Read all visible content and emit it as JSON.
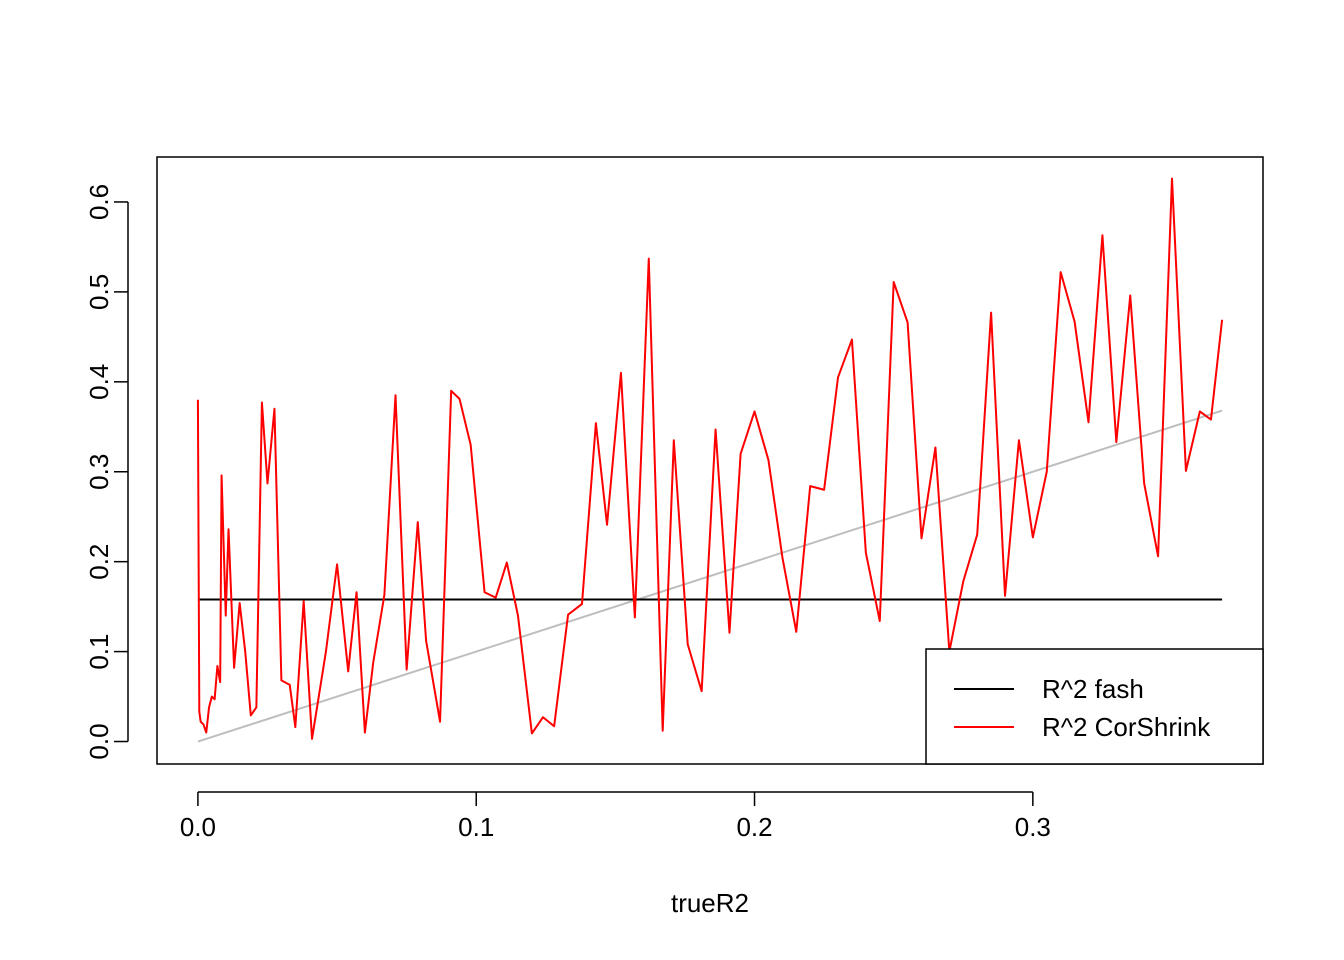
{
  "chart_data": {
    "type": "line",
    "title": "",
    "xlabel": "trueR2",
    "ylabel": "",
    "xlim": [
      -0.0147,
      0.3827
    ],
    "ylim": [
      -0.025,
      0.65
    ],
    "x_ticks": [
      {
        "value": 0.0,
        "label": "0.0"
      },
      {
        "value": 0.1,
        "label": "0.1"
      },
      {
        "value": 0.2,
        "label": "0.2"
      },
      {
        "value": 0.3,
        "label": "0.3"
      }
    ],
    "y_ticks": [
      {
        "value": 0.0,
        "label": "0.0"
      },
      {
        "value": 0.1,
        "label": "0.1"
      },
      {
        "value": 0.2,
        "label": "0.2"
      },
      {
        "value": 0.3,
        "label": "0.3"
      },
      {
        "value": 0.4,
        "label": "0.4"
      },
      {
        "value": 0.5,
        "label": "0.5"
      },
      {
        "value": 0.6,
        "label": "0.6"
      }
    ],
    "legend_position": "bottom-right",
    "series": [
      {
        "name": "R^2 fash",
        "color": "#000000",
        "points": [
          [
            0.0,
            0.158
          ],
          [
            0.368,
            0.158
          ]
        ]
      },
      {
        "name": "R^2 CorShrink",
        "color": "#ff0000",
        "points": [
          [
            0.0,
            0.38
          ],
          [
            0.0005,
            0.033
          ],
          [
            0.001,
            0.022
          ],
          [
            0.002,
            0.019
          ],
          [
            0.003,
            0.01
          ],
          [
            0.004,
            0.038
          ],
          [
            0.005,
            0.05
          ],
          [
            0.006,
            0.047
          ],
          [
            0.007,
            0.084
          ],
          [
            0.008,
            0.066
          ],
          [
            0.0085,
            0.296
          ],
          [
            0.01,
            0.14
          ],
          [
            0.011,
            0.236
          ],
          [
            0.013,
            0.082
          ],
          [
            0.015,
            0.154
          ],
          [
            0.017,
            0.1
          ],
          [
            0.019,
            0.029
          ],
          [
            0.021,
            0.038
          ],
          [
            0.023,
            0.377
          ],
          [
            0.025,
            0.287
          ],
          [
            0.0275,
            0.37
          ],
          [
            0.03,
            0.068
          ],
          [
            0.033,
            0.063
          ],
          [
            0.035,
            0.016
          ],
          [
            0.038,
            0.156
          ],
          [
            0.041,
            0.003
          ],
          [
            0.046,
            0.1
          ],
          [
            0.05,
            0.197
          ],
          [
            0.054,
            0.078
          ],
          [
            0.057,
            0.166
          ],
          [
            0.06,
            0.01
          ],
          [
            0.063,
            0.088
          ],
          [
            0.067,
            0.163
          ],
          [
            0.071,
            0.385
          ],
          [
            0.075,
            0.08
          ],
          [
            0.079,
            0.244
          ],
          [
            0.082,
            0.112
          ],
          [
            0.087,
            0.022
          ],
          [
            0.091,
            0.39
          ],
          [
            0.094,
            0.381
          ],
          [
            0.098,
            0.33
          ],
          [
            0.103,
            0.166
          ],
          [
            0.107,
            0.16
          ],
          [
            0.111,
            0.199
          ],
          [
            0.115,
            0.14
          ],
          [
            0.12,
            0.009
          ],
          [
            0.124,
            0.027
          ],
          [
            0.128,
            0.017
          ],
          [
            0.133,
            0.141
          ],
          [
            0.138,
            0.153
          ],
          [
            0.143,
            0.354
          ],
          [
            0.147,
            0.241
          ],
          [
            0.152,
            0.41
          ],
          [
            0.157,
            0.138
          ],
          [
            0.162,
            0.537
          ],
          [
            0.167,
            0.012
          ],
          [
            0.171,
            0.335
          ],
          [
            0.176,
            0.108
          ],
          [
            0.181,
            0.056
          ],
          [
            0.186,
            0.347
          ],
          [
            0.191,
            0.121
          ],
          [
            0.195,
            0.32
          ],
          [
            0.2,
            0.367
          ],
          [
            0.205,
            0.313
          ],
          [
            0.21,
            0.205
          ],
          [
            0.215,
            0.122
          ],
          [
            0.22,
            0.284
          ],
          [
            0.225,
            0.28
          ],
          [
            0.23,
            0.405
          ],
          [
            0.235,
            0.447
          ],
          [
            0.24,
            0.21
          ],
          [
            0.245,
            0.134
          ],
          [
            0.25,
            0.511
          ],
          [
            0.255,
            0.466
          ],
          [
            0.26,
            0.226
          ],
          [
            0.265,
            0.327
          ],
          [
            0.27,
            0.1
          ],
          [
            0.275,
            0.178
          ],
          [
            0.28,
            0.23
          ],
          [
            0.285,
            0.477
          ],
          [
            0.29,
            0.162
          ],
          [
            0.295,
            0.335
          ],
          [
            0.3,
            0.227
          ],
          [
            0.305,
            0.3
          ],
          [
            0.31,
            0.522
          ],
          [
            0.315,
            0.467
          ],
          [
            0.32,
            0.355
          ],
          [
            0.325,
            0.563
          ],
          [
            0.33,
            0.333
          ],
          [
            0.335,
            0.496
          ],
          [
            0.34,
            0.287
          ],
          [
            0.345,
            0.206
          ],
          [
            0.35,
            0.626
          ],
          [
            0.355,
            0.301
          ],
          [
            0.36,
            0.367
          ],
          [
            0.364,
            0.358
          ],
          [
            0.368,
            0.469
          ]
        ]
      },
      {
        "name": "",
        "color": "#bebebe",
        "points": [
          [
            0.0,
            0.0
          ],
          [
            0.368,
            0.368
          ]
        ]
      }
    ]
  }
}
